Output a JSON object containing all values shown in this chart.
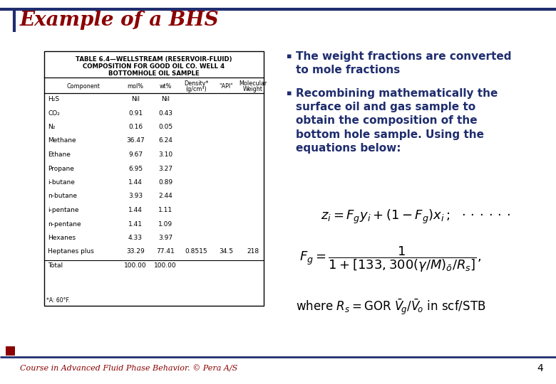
{
  "title": "Example of a BHS",
  "title_color": "#8B0000",
  "bg_color": "#FFFFFF",
  "slide_border_color": "#1F2D6E",
  "footer_text": "Course in Advanced Fluid Phase Behavior. © Pera A/S",
  "footer_color": "#8B0000",
  "page_number": "4",
  "table_title_lines": [
    "TABLE 6.4—WELLSTREAM (RESERVOIR-FLUID)",
    "COMPOSITION FOR GOOD OIL CO. WELL 4",
    "BOTTOMHOLE OIL SAMPLE"
  ],
  "table_data": [
    [
      "H₂S",
      "Nil",
      "Nil",
      "",
      "",
      ""
    ],
    [
      "CO₂",
      "0.91",
      "0.43",
      "",
      "",
      ""
    ],
    [
      "N₂",
      "0.16",
      "0.05",
      "",
      "",
      ""
    ],
    [
      "Methane",
      "36.47",
      "6.24",
      "",
      "",
      ""
    ],
    [
      "Ethane",
      "9.67",
      "3.10",
      "",
      "",
      ""
    ],
    [
      "Propane",
      "6.95",
      "3.27",
      "",
      "",
      ""
    ],
    [
      "i-butane",
      "1.44",
      "0.89",
      "",
      "",
      ""
    ],
    [
      "n-butane",
      "3.93",
      "2.44",
      "",
      "",
      ""
    ],
    [
      "i-pentane",
      "1.44",
      "1.11",
      "",
      "",
      ""
    ],
    [
      "n-pentane",
      "1.41",
      "1.09",
      "",
      "",
      ""
    ],
    [
      "Hexanes",
      "4.33",
      "3.97",
      "",
      "",
      ""
    ],
    [
      "Heptanes plus",
      "33.29",
      "77.41",
      "0.8515",
      "34.5",
      "218"
    ],
    [
      "Total",
      "100.00",
      "100.00",
      "",
      "",
      ""
    ]
  ],
  "table_footnote": "*A: 60°F.",
  "bullet1": "The weight fractions are converted\nto mole fractions",
  "bullet2": "Recombining mathematically the\nsurface oil and gas sample to\nobtain the composition of the\nbottom hole sample. Using the\nequations below:",
  "bullet_color": "#1F2D6E",
  "accent_red": "#8B0000"
}
